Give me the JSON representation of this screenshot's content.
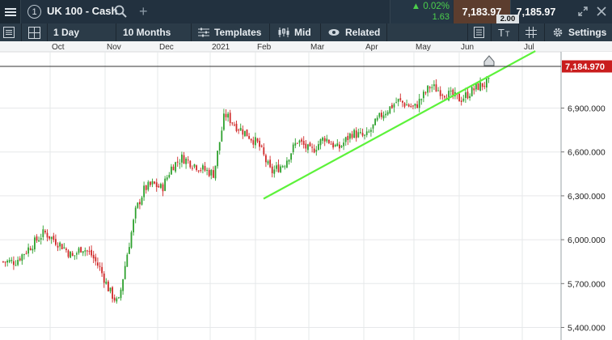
{
  "header": {
    "slot": "1",
    "instrument": "UK 100 - Cash",
    "change_pct": "0.02%",
    "change_pts": "1.63",
    "sell_price": "7,183.97",
    "buy_price": "7,185.97",
    "spread": "2.00",
    "icons": [
      "menu-icon",
      "search-icon",
      "add-icon",
      "expand-icon",
      "close-icon"
    ]
  },
  "toolbar": {
    "interval": "1 Day",
    "range": "10 Months",
    "templates": "Templates",
    "price_type": "Mid",
    "related": "Related",
    "settings": "Settings"
  },
  "chart": {
    "month_labels": [
      "Oct",
      "Nov",
      "Dec",
      "2021",
      "Feb",
      "Mar",
      "Apr",
      "May",
      "Jun",
      "Jul"
    ],
    "y_ticks": [
      "6,900.000",
      "6,600.000",
      "6,300.000",
      "6,000.000",
      "5,700.000",
      "5,400.000"
    ],
    "current_price": "7,184.970",
    "colors": {
      "up": "#2ea12e",
      "down": "#d02a2a",
      "trendline": "#5cf23a",
      "price_tag": "#c91d1d"
    }
  },
  "chart_data": {
    "type": "candlestick",
    "instrument": "UK 100 - Cash",
    "interval": "1 Day",
    "ylim": [
      5400,
      7250
    ],
    "y_ticks": [
      5400,
      5700,
      6000,
      6300,
      6600,
      6900
    ],
    "month_ticks": [
      "Oct",
      "Nov",
      "Dec",
      "2021",
      "Feb",
      "Mar",
      "Apr",
      "May",
      "Jun",
      "Jul"
    ],
    "current_price": 7184.97,
    "close_path": [
      {
        "x": "Sep",
        "close": 5850
      },
      {
        "x": "Sep",
        "close": 6050
      },
      {
        "x": "Oct",
        "close": 5950
      },
      {
        "x": "Oct",
        "close": 5880
      },
      {
        "x": "Oct",
        "close": 5950
      },
      {
        "x": "Oct",
        "close": 5900
      },
      {
        "x": "Oct",
        "close": 5800
      },
      {
        "x": "Oct",
        "close": 5650
      },
      {
        "x": "Nov",
        "close": 5560
      },
      {
        "x": "Nov",
        "close": 5900
      },
      {
        "x": "Nov",
        "close": 6200
      },
      {
        "x": "Nov",
        "close": 6350
      },
      {
        "x": "Nov",
        "close": 6380
      },
      {
        "x": "Nov",
        "close": 6350
      },
      {
        "x": "Dec",
        "close": 6500
      },
      {
        "x": "Dec",
        "close": 6560
      },
      {
        "x": "Dec",
        "close": 6520
      },
      {
        "x": "Dec",
        "close": 6480
      },
      {
        "x": "Dec",
        "close": 6450
      },
      {
        "x": "2021",
        "close": 6860
      },
      {
        "x": "2021",
        "close": 6780
      },
      {
        "x": "2021",
        "close": 6720
      },
      {
        "x": "2021",
        "close": 6650
      },
      {
        "x": "Feb",
        "close": 6460
      },
      {
        "x": "Feb",
        "close": 6520
      },
      {
        "x": "Feb",
        "close": 6680
      },
      {
        "x": "Feb",
        "close": 6600
      },
      {
        "x": "Mar",
        "close": 6700
      },
      {
        "x": "Mar",
        "close": 6620
      },
      {
        "x": "Mar",
        "close": 6730
      },
      {
        "x": "Mar",
        "close": 6700
      },
      {
        "x": "Apr",
        "close": 6850
      },
      {
        "x": "Apr",
        "close": 6950
      },
      {
        "x": "Apr",
        "close": 6900
      },
      {
        "x": "May",
        "close": 7050
      },
      {
        "x": "May",
        "close": 7000
      },
      {
        "x": "May",
        "close": 6960
      },
      {
        "x": "Jun",
        "close": 7050
      },
      {
        "x": "Jun",
        "close": 7100
      },
      {
        "x": "Jun",
        "close": 7185
      }
    ],
    "trendline": {
      "from": {
        "x": "Feb",
        "y": 6280
      },
      "to": {
        "x": "Jul",
        "y": 7290
      }
    },
    "grid": true,
    "legend": "none"
  }
}
